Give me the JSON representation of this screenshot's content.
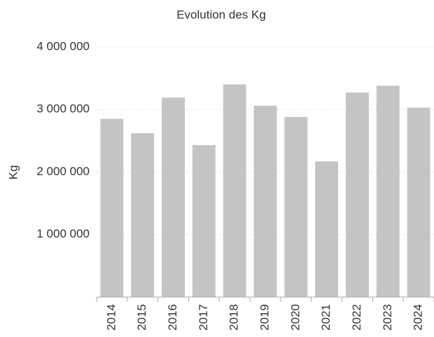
{
  "chart_data": {
    "type": "bar",
    "title": "Evolution des Kg",
    "y_label": "Kg",
    "categories": [
      "2014",
      "2015",
      "2016",
      "2017",
      "2018",
      "2019",
      "2020",
      "2021",
      "2022",
      "2023",
      "2024"
    ],
    "values": [
      2850000,
      2620000,
      3190000,
      2430000,
      3400000,
      3060000,
      2880000,
      2170000,
      3270000,
      3380000,
      3030000
    ],
    "color": "#c4c3c5",
    "ylim": [
      0,
      4000000
    ],
    "yticks": [
      {
        "value": 1000000,
        "label": "1 000 000"
      },
      {
        "value": 2000000,
        "label": "2 000 000"
      },
      {
        "value": 3000000,
        "label": "3 000 000"
      },
      {
        "value": 4000000,
        "label": "4 000 000"
      }
    ],
    "grid": true
  }
}
